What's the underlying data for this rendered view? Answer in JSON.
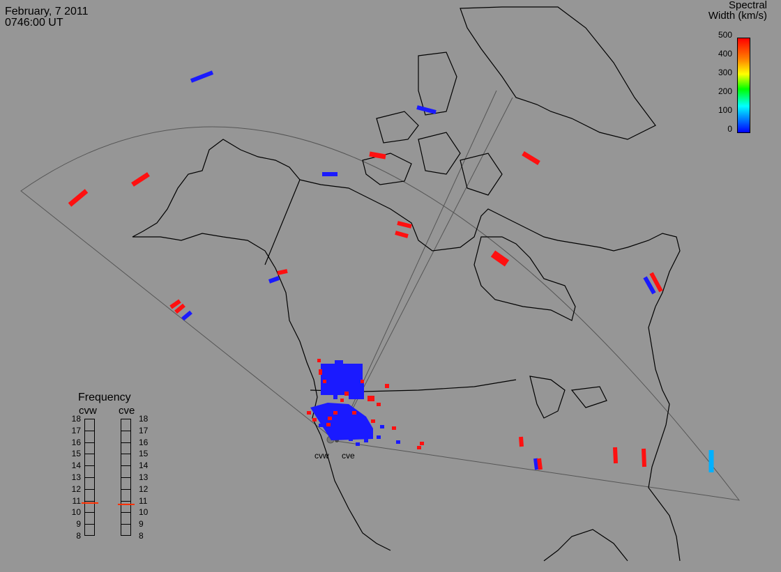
{
  "header": {
    "date": "February, 7 2011",
    "time": "0746:00 UT"
  },
  "colorbar": {
    "title_line1": "Spectral",
    "title_line2": "Width (km/s)",
    "ticks": [
      "500",
      "400",
      "300",
      "200",
      "100",
      "0"
    ],
    "min": 0,
    "max": 500
  },
  "frequency_panel": {
    "title": "Frequency",
    "radars": [
      "cvw",
      "cve"
    ],
    "scale": [
      "18",
      "17",
      "16",
      "15",
      "14",
      "13",
      "12",
      "11",
      "10",
      "9",
      "8"
    ],
    "cvw_freq_mhz": 10.8,
    "cve_freq_mhz": 10.7
  },
  "radar_labels": [
    "cvw",
    "cve"
  ],
  "colors": {
    "background": "#969696",
    "coastline": "#000000",
    "fov_outline": "#555555",
    "low_width": "#1a1aff",
    "high_width": "#ff1010",
    "mid_width": "#00b0ff"
  }
}
